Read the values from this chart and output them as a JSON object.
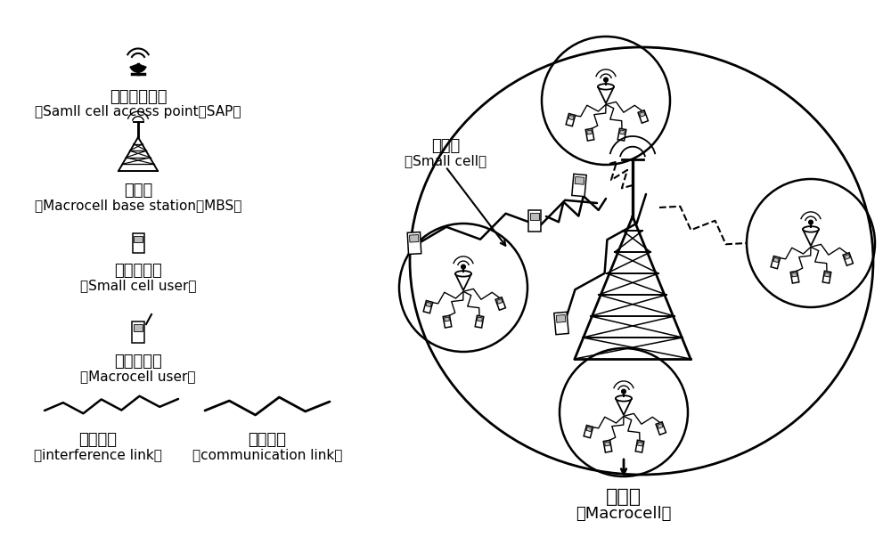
{
  "background_color": "#ffffff",
  "text_color": "#000000",
  "legend_sap_zh": "小小区接入点",
  "legend_sap_en": "（Samll cell access point，SAP）",
  "legend_mbs_zh": "宏基站",
  "legend_mbs_en": "（Macrocell base station，MBS）",
  "legend_su_zh": "小小区用户",
  "legend_su_en": "（Small cell user）",
  "legend_mu_zh": "宏小区用户",
  "legend_mu_en": "（Macrocell user）",
  "legend_int_zh": "干扰链路",
  "legend_int_en": "（interference link）",
  "legend_com_zh": "通信链路",
  "legend_com_en": "（communication link）",
  "macrocell_zh": "宏小区",
  "macrocell_en": "（Macrocell）",
  "smallcell_zh": "小小区",
  "smallcell_en": "（Small cell）",
  "fig_width": 10.0,
  "fig_height": 6.03,
  "dpi": 100
}
